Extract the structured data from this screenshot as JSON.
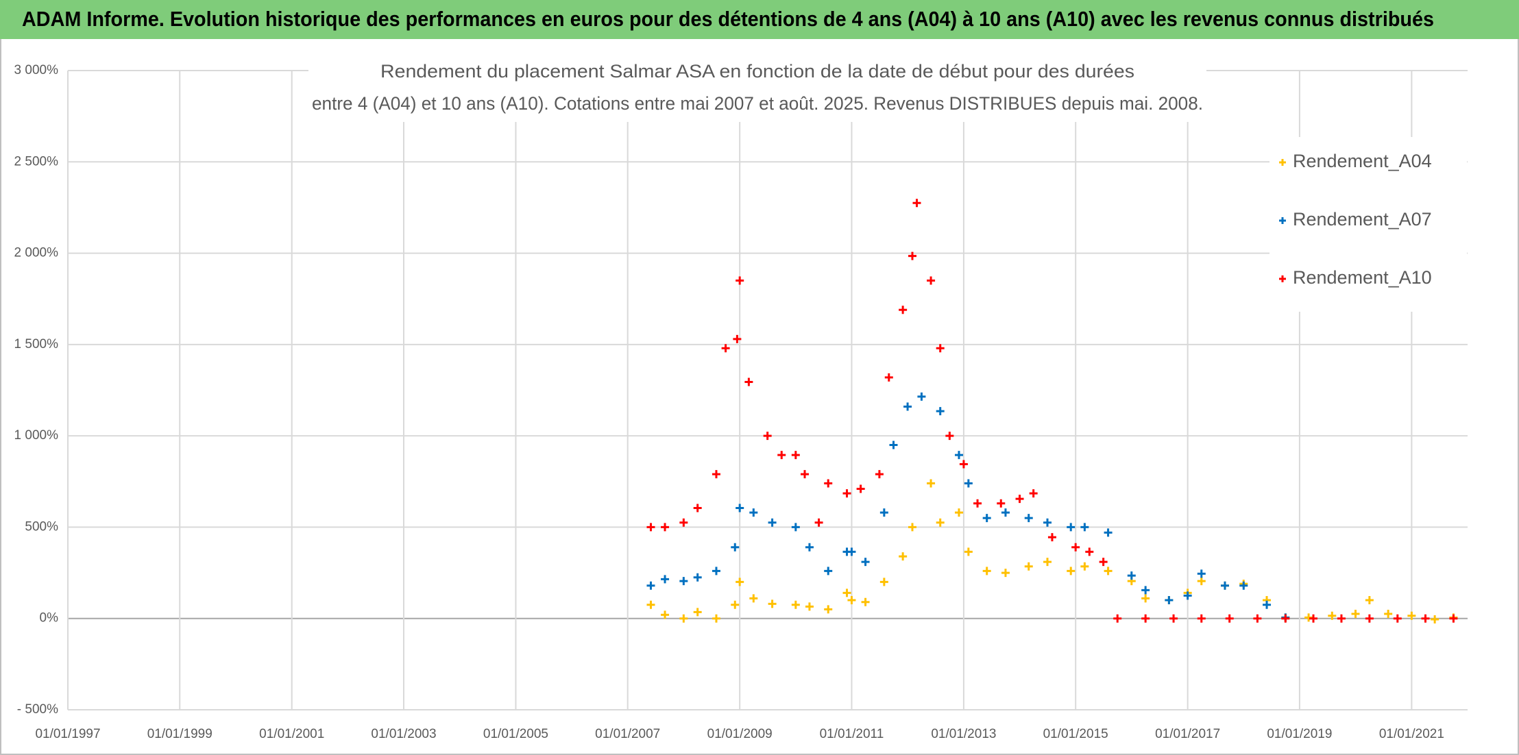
{
  "chart_data": {
    "type": "scatter",
    "header": "ADAM Informe. Evolution historique des performances en euros pour des détentions de 4 ans (A04) à 10 ans (A10) avec les revenus connus distribués",
    "title": [
      "Rendement du placement Salmar ASA en fonction de la date de début pour des durées",
      "entre 4 (A04) et 10 ans (A10). Cotations entre mai 2007 et août. 2025. Revenus DISTRIBUES depuis mai. 2008."
    ],
    "xlim": [
      "01/01/1997",
      "01/01/2022"
    ],
    "xticks": [
      "01/01/1997",
      "01/01/1999",
      "01/01/2001",
      "01/01/2003",
      "01/01/2005",
      "01/01/2007",
      "01/01/2009",
      "01/01/2011",
      "01/01/2013",
      "01/01/2015",
      "01/01/2017",
      "01/01/2019",
      "01/01/2021"
    ],
    "ylim": [
      -500,
      3000
    ],
    "yticks": [
      {
        "value": -500,
        "label": "- 500%"
      },
      {
        "value": 0,
        "label": "0%"
      },
      {
        "value": 500,
        "label": "500%"
      },
      {
        "value": 1000,
        "label": "1 000%"
      },
      {
        "value": 1500,
        "label": "1 500%"
      },
      {
        "value": 2000,
        "label": "2 000%"
      },
      {
        "value": 2500,
        "label": "2 500%"
      },
      {
        "value": 3000,
        "label": "3 000%"
      }
    ],
    "grid": true,
    "legend": "right",
    "series": [
      {
        "name": "Rendement_A04",
        "color": "#ffc000",
        "x": [
          "01/06/2007",
          "01/09/2007",
          "01/01/2008",
          "01/04/2008",
          "01/08/2008",
          "01/12/2008",
          "01/01/2009",
          "01/04/2009",
          "01/08/2009",
          "01/01/2010",
          "01/04/2010",
          "01/08/2010",
          "01/12/2010",
          "01/01/2011",
          "01/04/2011",
          "01/08/2011",
          "01/12/2011",
          "01/02/2012",
          "01/06/2012",
          "01/08/2012",
          "01/12/2012",
          "01/02/2013",
          "01/06/2013",
          "01/10/2013",
          "01/03/2014",
          "01/07/2014",
          "01/12/2014",
          "01/03/2015",
          "01/08/2015",
          "01/01/2016",
          "01/04/2016",
          "01/09/2016",
          "01/01/2017",
          "01/04/2017",
          "01/09/2017",
          "01/01/2018",
          "01/06/2018",
          "01/10/2018",
          "01/03/2019",
          "01/08/2019",
          "01/01/2020",
          "01/04/2020",
          "01/08/2020",
          "01/01/2021",
          "01/06/2021",
          "01/10/2021"
        ],
        "values": [
          75,
          20,
          0,
          35,
          0,
          75,
          200,
          110,
          80,
          75,
          65,
          50,
          140,
          100,
          90,
          200,
          340,
          500,
          740,
          525,
          580,
          365,
          260,
          250,
          285,
          310,
          260,
          285,
          260,
          205,
          110,
          100,
          140,
          205,
          180,
          190,
          100,
          5,
          5,
          15,
          25,
          100,
          25,
          15,
          -5,
          5
        ]
      },
      {
        "name": "Rendement_A07",
        "color": "#0070c0",
        "x": [
          "01/06/2007",
          "01/09/2007",
          "01/01/2008",
          "01/04/2008",
          "01/08/2008",
          "01/12/2008",
          "01/01/2009",
          "01/04/2009",
          "01/08/2009",
          "01/01/2010",
          "01/04/2010",
          "01/08/2010",
          "01/12/2010",
          "01/01/2011",
          "01/04/2011",
          "01/08/2011",
          "01/10/2011",
          "01/01/2012",
          "01/04/2012",
          "01/08/2012",
          "01/12/2012",
          "01/02/2013",
          "01/06/2013",
          "01/10/2013",
          "01/03/2014",
          "01/07/2014",
          "01/12/2014",
          "01/03/2015",
          "01/08/2015",
          "01/01/2016",
          "01/04/2016",
          "01/09/2016",
          "01/01/2017",
          "01/04/2017",
          "01/09/2017",
          "01/01/2018",
          "01/06/2018",
          "01/10/2018"
        ],
        "values": [
          180,
          215,
          205,
          225,
          260,
          390,
          605,
          580,
          525,
          500,
          390,
          260,
          365,
          365,
          310,
          580,
          950,
          1160,
          1215,
          1135,
          895,
          740,
          550,
          580,
          550,
          525,
          500,
          500,
          470,
          235,
          155,
          100,
          125,
          245,
          180,
          180,
          75,
          5
        ]
      },
      {
        "name": "Rendement_A10",
        "color": "#ff0000",
        "x": [
          "01/06/2007",
          "01/09/2007",
          "01/01/2008",
          "01/04/2008",
          "01/08/2008",
          "01/10/2008",
          "15/12/2008",
          "01/01/2009",
          "01/03/2009",
          "01/07/2009",
          "01/10/2009",
          "01/01/2010",
          "01/03/2010",
          "01/06/2010",
          "01/08/2010",
          "01/12/2010",
          "01/03/2011",
          "01/07/2011",
          "01/09/2011",
          "01/12/2011",
          "01/02/2012",
          "01/03/2012",
          "01/06/2012",
          "01/08/2012",
          "01/10/2012",
          "01/01/2013",
          "01/04/2013",
          "01/09/2013",
          "01/01/2014",
          "01/04/2014",
          "01/08/2014",
          "01/01/2015",
          "01/04/2015",
          "01/07/2015",
          "01/10/2015",
          "01/04/2016",
          "01/10/2016",
          "01/04/2017",
          "01/10/2017",
          "01/04/2018",
          "01/10/2018",
          "01/04/2019",
          "01/10/2019",
          "01/04/2020",
          "01/10/2020",
          "01/04/2021",
          "01/10/2021"
        ],
        "values": [
          500,
          500,
          525,
          605,
          790,
          1480,
          1530,
          1850,
          1295,
          1000,
          895,
          895,
          790,
          525,
          740,
          685,
          710,
          790,
          1320,
          1690,
          1985,
          2275,
          1850,
          1480,
          1000,
          845,
          630,
          630,
          655,
          685,
          445,
          390,
          365,
          310,
          0,
          0,
          0,
          0,
          0,
          0,
          0,
          0,
          0,
          0,
          0,
          0,
          0
        ]
      }
    ]
  }
}
